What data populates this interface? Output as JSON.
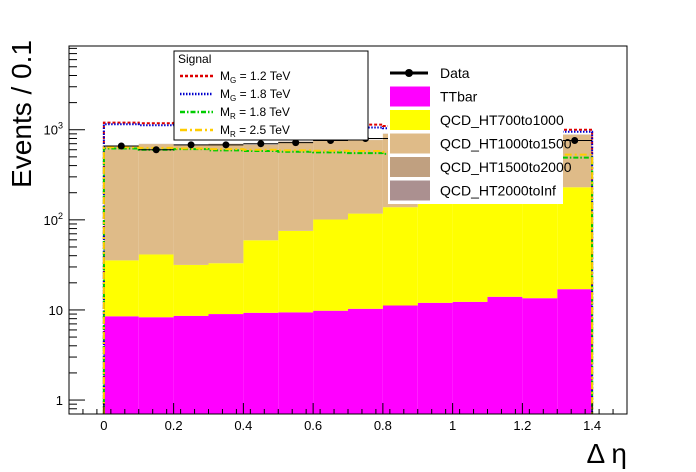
{
  "chart_data": {
    "type": "bar",
    "stacked": true,
    "log_y": true,
    "xlabel": "Δ η",
    "ylabel": "Events / 0.1",
    "xlim": [
      -0.1,
      1.5
    ],
    "ylim": [
      0.7,
      8500
    ],
    "x_ticks": [
      0,
      0.2,
      0.4,
      0.6,
      0.8,
      1,
      1.2,
      1.4
    ],
    "x_tick_labels": [
      "0",
      "0.2",
      "0.4",
      "0.6",
      "0.8",
      "1",
      "1.2",
      "1.4"
    ],
    "y_tick_labels": [
      "1",
      "10",
      "10^2",
      "10^3"
    ],
    "bins": [
      0,
      0.1,
      0.2,
      0.3,
      0.4,
      0.5,
      0.6,
      0.7,
      0.8,
      0.9,
      1.0,
      1.1,
      1.2,
      1.3
    ],
    "series": [
      {
        "name": "TTbar",
        "color": "#ff00ff",
        "values": [
          8.5,
          8.3,
          8.6,
          9.0,
          9.3,
          9.4,
          9.8,
          10.3,
          11.2,
          12.0,
          12.3,
          14.0,
          13.5,
          17.0
        ]
      },
      {
        "name": "QCD_HT700to1000",
        "color": "#ffff00",
        "values": [
          27,
          33,
          23,
          24,
          50,
          66,
          91,
          107,
          127,
          168,
          178,
          216,
          226,
          213
        ]
      },
      {
        "name": "QCD_HT1000to1500",
        "color": "#dfbb88",
        "values": [
          610,
          650,
          640,
          660,
          620,
          660,
          650,
          650,
          760,
          720,
          800,
          700,
          720,
          650
        ]
      },
      {
        "name": "QCD_HT1500to2000",
        "color": "#c0a080",
        "values": [
          5,
          5,
          5,
          5,
          5,
          5,
          5,
          5,
          5,
          5,
          5,
          5,
          5,
          5
        ]
      },
      {
        "name": "QCD_HT2000toInf",
        "color": "#ab9090",
        "values": [
          1,
          1,
          1,
          1,
          1,
          1,
          1,
          1,
          1,
          1,
          1,
          1,
          1,
          1
        ]
      }
    ],
    "data": {
      "name": "Data",
      "values": [
        660,
        600,
        680,
        680,
        700,
        720,
        760,
        800,
        800,
        860,
        780,
        820,
        780,
        760
      ]
    },
    "signals": {
      "title": "Signal",
      "entries": [
        {
          "label": "M",
          "sub": "G",
          "suffix": " = 1.2 TeV",
          "color": "#dd0000",
          "dash": "3,2",
          "values": [
            1200,
            1180,
            1190,
            1170,
            1160,
            1150,
            1160,
            1140,
            1100,
            1080,
            1060,
            1040,
            1020,
            1000
          ]
        },
        {
          "label": "M",
          "sub": "G",
          "suffix": " = 1.8 TeV",
          "color": "#0000cc",
          "dash": "1.5,1.5",
          "values": [
            1150,
            1120,
            1130,
            1110,
            1100,
            1080,
            1070,
            1060,
            1040,
            1020,
            1000,
            980,
            960,
            950
          ]
        },
        {
          "label": "M",
          "sub": "R",
          "suffix": " = 1.8 TeV",
          "color": "#00cc00",
          "dash": "5,2,1.5,2",
          "values": [
            620,
            600,
            610,
            590,
            580,
            570,
            560,
            550,
            540,
            530,
            520,
            510,
            500,
            490
          ]
        },
        {
          "label": "M",
          "sub": "R",
          "suffix": " = 2.5 TeV",
          "color": "#ffcc00",
          "dash": "7,3,2,3",
          "values": [
            640,
            630,
            620,
            610,
            600,
            590,
            585,
            580,
            570,
            560,
            550,
            545,
            540,
            530
          ]
        }
      ]
    },
    "legend": {
      "placement": "top-right",
      "entries": [
        "Data",
        "TTbar",
        "QCD_HT700to1000",
        "QCD_HT1000to1500",
        "QCD_HT1500to2000",
        "QCD_HT2000toInf"
      ]
    }
  }
}
